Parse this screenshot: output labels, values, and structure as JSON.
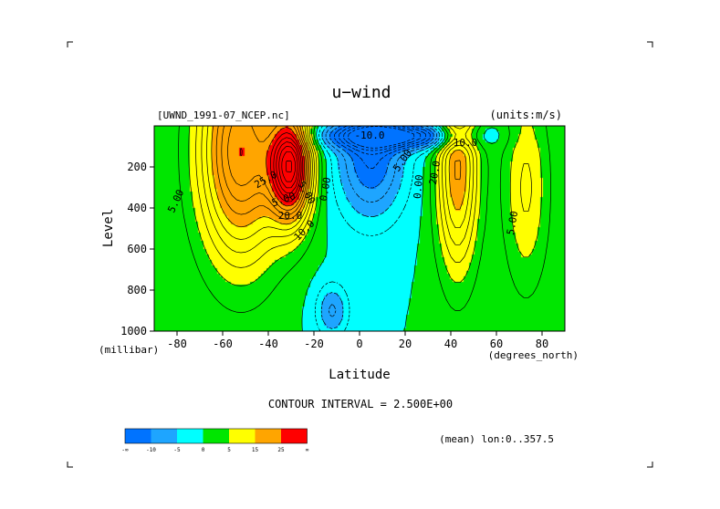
{
  "chart_data": {
    "type": "heatmap",
    "title": "u−wind",
    "dataset": "[UWND_1991-07_NCEP.nc]",
    "units": "(units:m/s)",
    "xlabel": "Latitude",
    "x_units": "(degrees_north)",
    "ylabel": "Level",
    "y_units": "(millibar)",
    "xlim": [
      -90,
      90
    ],
    "ylim": [
      1000,
      0
    ],
    "x_ticks": [
      "-80",
      "-60",
      "-40",
      "-20",
      "0",
      "20",
      "40",
      "60",
      "80"
    ],
    "y_ticks": [
      "200",
      "400",
      "600",
      "800",
      "1000"
    ],
    "contour_interval": "CONTOUR INTERVAL = 2.500E+00",
    "footer_note": "(mean) lon:0..357.5",
    "contour_labels": [
      "5.00",
      "20.0",
      "10.0",
      "5.00",
      "0.00",
      "-10.0",
      "5.00",
      "0.00",
      "20.0",
      "10.0",
      "5.00",
      "5.00",
      "25.0"
    ],
    "colorbar": {
      "ticks": [
        "-∞",
        "-10",
        "-5",
        "0",
        "5",
        "15",
        "25",
        "∞"
      ],
      "colors": [
        "#0073ff",
        "#1ea5ff",
        "#00ffff",
        "#00e600",
        "#ffff00",
        "#ffa500",
        "#ff0000"
      ],
      "bounds": [
        -15,
        -10,
        -5,
        0,
        5,
        15,
        25,
        30
      ]
    },
    "jets": [
      {
        "lat": -30,
        "p": 200,
        "peak": 35,
        "wlat": 9,
        "wp": 260
      },
      {
        "lat": -52,
        "p": 120,
        "peak": 25,
        "wlat": 18,
        "wp": 520
      },
      {
        "lat": 43,
        "p": 200,
        "peak": 18,
        "wlat": 9,
        "wp": 500
      },
      {
        "lat": 73,
        "p": 300,
        "peak": 8,
        "wlat": 10,
        "wp": 500
      },
      {
        "lat": 5,
        "p": 150,
        "peak": -13,
        "wlat": 15,
        "wp": 300
      },
      {
        "lat": -12,
        "p": 900,
        "peak": -8,
        "wlat": 7,
        "wp": 130
      },
      {
        "lat": 15,
        "p": 50,
        "peak": -20,
        "wlat": 30,
        "wp": 60
      }
    ]
  }
}
